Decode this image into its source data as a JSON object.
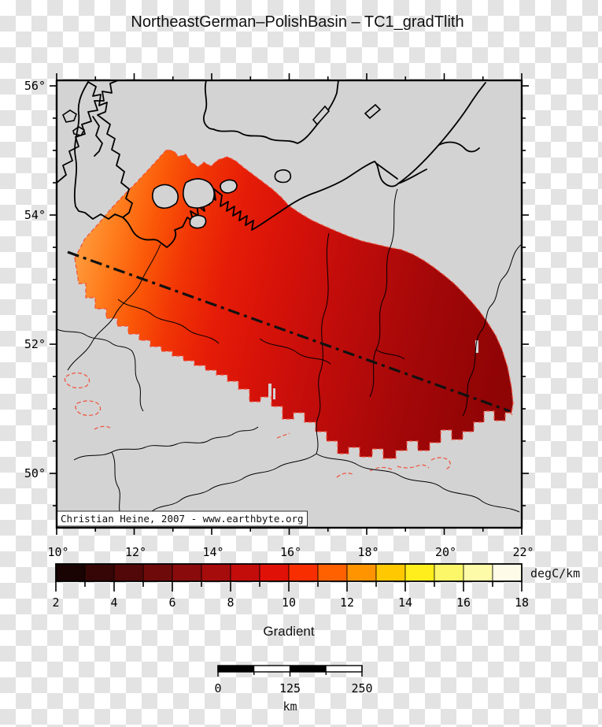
{
  "title": "NortheastGerman–PolishBasin – TC1_gradTlith",
  "map": {
    "attribution": "Christian Heine, 2007 - www.earthbyte.org",
    "land_color": "#d3d3d3",
    "coastline_color": "#000000",
    "basin_outline_color": "#f0503c",
    "transect_style": "dash-dot",
    "lat_tick_labels": [
      "56°",
      "54°",
      "52°",
      "50°"
    ],
    "lon_tick_labels": [
      "10°",
      "12°",
      "14°",
      "16°",
      "18°",
      "20°",
      "22°"
    ]
  },
  "colorbar": {
    "title": "Gradient",
    "unit": "degC/km",
    "min": 2,
    "max": 18,
    "tick_labels": [
      "2",
      "4",
      "6",
      "8",
      "10",
      "12",
      "14",
      "16",
      "18"
    ],
    "segment_colors": [
      "#190303",
      "#360606",
      "#520808",
      "#6e0a0a",
      "#8a0b0b",
      "#a70c0c",
      "#c30d0b",
      "#e01106",
      "#f92e00",
      "#ff6000",
      "#ff9400",
      "#ffc800",
      "#ffed1c",
      "#fcf768",
      "#fdfaa8",
      "#fefce8"
    ]
  },
  "scalebar": {
    "tick_labels": [
      "0",
      "125",
      "250"
    ],
    "unit": "km",
    "length_km": 250
  },
  "chart_data": {
    "type": "heatmap",
    "title": "NortheastGerman–PolishBasin – TC1_gradTlith",
    "variable": "Gradient",
    "unit": "degC/km",
    "value_range": [
      2,
      18
    ],
    "colorbar_tick_values": [
      2,
      4,
      6,
      8,
      10,
      12,
      14,
      16,
      18
    ],
    "lon_range_deg": [
      10,
      22
    ],
    "lat_range_deg": [
      49.2,
      56.1
    ],
    "basin_gradient_west_to_east": "orange (~12 degC/km) grading to dark red (~5 degC/km)"
  }
}
